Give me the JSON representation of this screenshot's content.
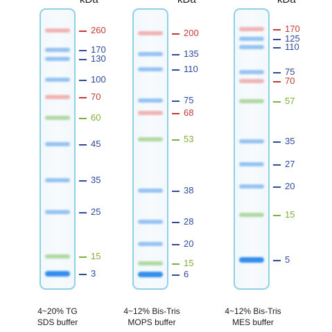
{
  "unit_label": "kDa",
  "colors": {
    "blue": "#2d4a9a",
    "red": "#c03a3a",
    "green": "#7fae3a"
  },
  "ladders": [
    {
      "id": "tg",
      "caption_line1": "4~20% TG",
      "caption_line2": "SDS buffer",
      "markers": [
        {
          "label": "260",
          "color": "red"
        },
        {
          "label": "170",
          "color": "blue"
        },
        {
          "label": "130",
          "color": "blue"
        },
        {
          "label": "100",
          "color": "blue"
        },
        {
          "label": "70",
          "color": "red"
        },
        {
          "label": "60",
          "color": "green"
        },
        {
          "label": "45",
          "color": "blue"
        },
        {
          "label": "35",
          "color": "blue"
        },
        {
          "label": "25",
          "color": "blue"
        },
        {
          "label": "15",
          "color": "green"
        },
        {
          "label": "3",
          "color": "blue"
        }
      ]
    },
    {
      "id": "mops",
      "caption_line1": "4~12% Bis-Tris",
      "caption_line2": "MOPS buffer",
      "markers": [
        {
          "label": "200",
          "color": "red"
        },
        {
          "label": "135",
          "color": "blue"
        },
        {
          "label": "110",
          "color": "blue"
        },
        {
          "label": "75",
          "color": "blue"
        },
        {
          "label": "68",
          "color": "red"
        },
        {
          "label": "53",
          "color": "green"
        },
        {
          "label": "38",
          "color": "blue"
        },
        {
          "label": "28",
          "color": "blue"
        },
        {
          "label": "20",
          "color": "blue"
        },
        {
          "label": "15",
          "color": "green"
        },
        {
          "label": "6",
          "color": "blue"
        }
      ]
    },
    {
      "id": "mes",
      "caption_line1": "4~12% Bis-Tris",
      "caption_line2": "MES buffer",
      "markers": [
        {
          "label": "170",
          "color": "red"
        },
        {
          "label": "125",
          "color": "blue"
        },
        {
          "label": "110",
          "color": "blue"
        },
        {
          "label": "75",
          "color": "blue"
        },
        {
          "label": "70",
          "color": "red"
        },
        {
          "label": "57",
          "color": "green"
        },
        {
          "label": "35",
          "color": "blue"
        },
        {
          "label": "27",
          "color": "blue"
        },
        {
          "label": "20",
          "color": "blue"
        },
        {
          "label": "15",
          "color": "green"
        },
        {
          "label": "5",
          "color": "blue"
        }
      ]
    }
  ]
}
